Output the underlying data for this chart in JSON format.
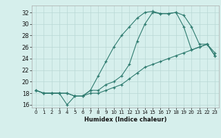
{
  "xlabel": "Humidex (Indice chaleur)",
  "xlim": [
    -0.5,
    23.5
  ],
  "ylim": [
    15.5,
    33.2
  ],
  "xticks": [
    0,
    1,
    2,
    3,
    4,
    5,
    6,
    7,
    8,
    9,
    10,
    11,
    12,
    13,
    14,
    15,
    16,
    17,
    18,
    19,
    20,
    21,
    22,
    23
  ],
  "yticks": [
    16,
    18,
    20,
    22,
    24,
    26,
    28,
    30,
    32
  ],
  "bg_color": "#d6efec",
  "line_color": "#2d7a6e",
  "grid_color": "#b8d8d4",
  "line1_x": [
    0,
    1,
    2,
    3,
    4,
    5,
    6,
    7,
    8,
    9,
    10,
    11,
    12,
    13,
    14,
    15,
    16,
    17,
    18,
    19,
    20,
    21,
    22,
    23
  ],
  "line1_y": [
    18.5,
    18.0,
    18.0,
    18.0,
    18.0,
    17.5,
    17.5,
    18.5,
    21.0,
    23.5,
    26.0,
    28.0,
    29.5,
    31.0,
    32.0,
    32.2,
    31.8,
    31.8,
    32.0,
    31.5,
    29.5,
    26.5,
    26.5,
    25.0
  ],
  "line2_x": [
    0,
    1,
    2,
    3,
    4,
    5,
    6,
    7,
    8,
    9,
    10,
    11,
    12,
    13,
    14,
    15,
    16,
    17,
    18,
    19,
    20,
    21,
    22,
    23
  ],
  "line2_y": [
    18.5,
    18.0,
    18.0,
    18.0,
    16.0,
    17.5,
    17.5,
    18.5,
    18.5,
    19.5,
    20.0,
    21.0,
    23.0,
    27.0,
    30.0,
    32.0,
    31.8,
    31.8,
    32.0,
    29.5,
    25.5,
    26.0,
    26.5,
    24.5
  ],
  "line3_x": [
    0,
    1,
    2,
    3,
    4,
    5,
    6,
    7,
    8,
    9,
    10,
    11,
    12,
    13,
    14,
    15,
    16,
    17,
    18,
    19,
    20,
    21,
    22,
    23
  ],
  "line3_y": [
    18.5,
    18.0,
    18.0,
    18.0,
    18.0,
    17.5,
    17.5,
    18.0,
    18.0,
    18.5,
    19.0,
    19.5,
    20.5,
    21.5,
    22.5,
    23.0,
    23.5,
    24.0,
    24.5,
    25.0,
    25.5,
    26.0,
    26.5,
    24.5
  ]
}
